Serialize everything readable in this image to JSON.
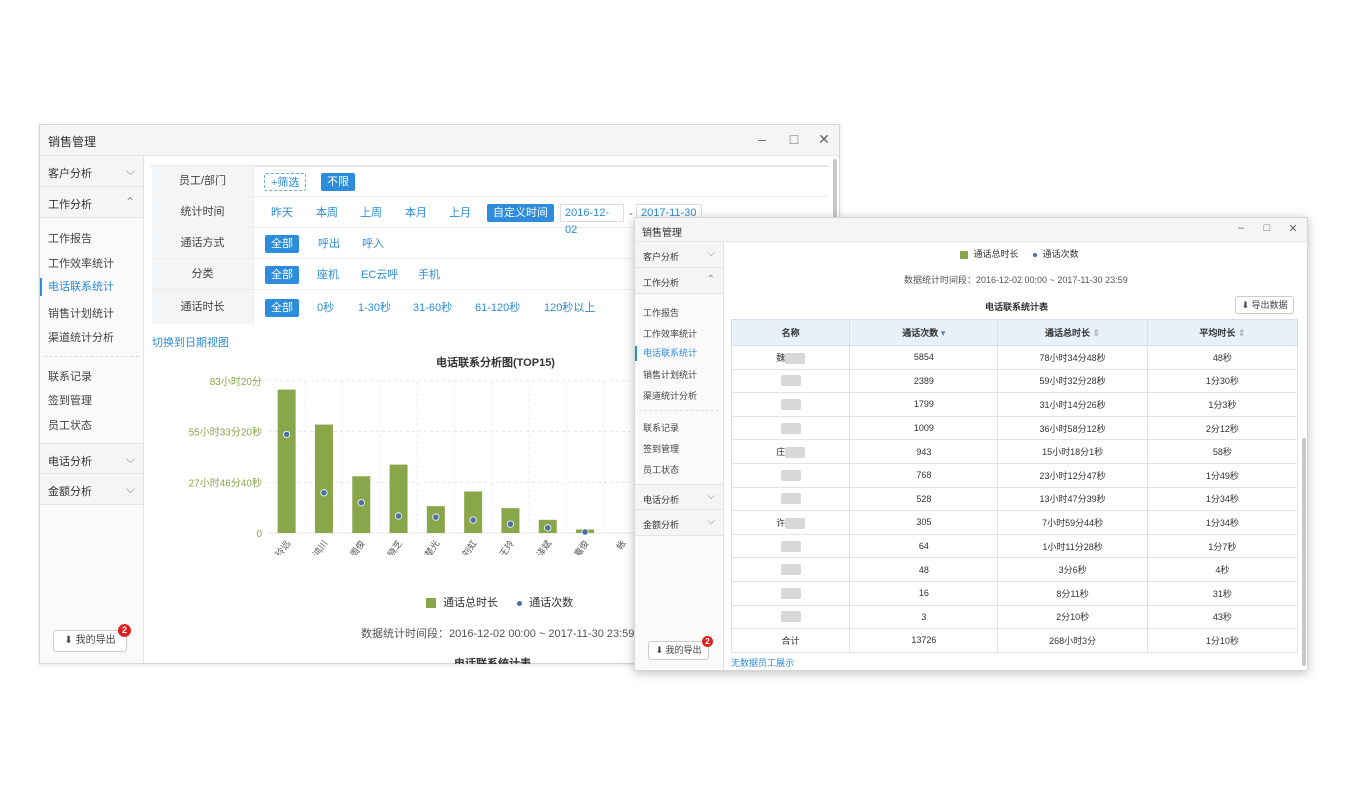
{
  "win1": {
    "title": "销售管理",
    "sidebar": {
      "group_customer": "客户分析",
      "group_work": "工作分析",
      "items": [
        "工作报告",
        "工作效率统计",
        "电话联系统计",
        "销售计划统计",
        "渠道统计分析"
      ],
      "items2": [
        "联系记录",
        "签到管理",
        "员工状态"
      ],
      "group_phone": "电话分析",
      "group_amount": "金额分析",
      "export_label": "我的导出",
      "export_badge": "2"
    },
    "filters": {
      "staff_label": "员工/部门",
      "staff_filter": "+筛选",
      "staff_all": "不限",
      "time_label": "统计时间",
      "time_options": [
        "昨天",
        "本周",
        "上周",
        "本月",
        "上月"
      ],
      "time_custom": "自定义时间",
      "date_from": "2016-12-02",
      "date_sep": "-",
      "date_to": "2017-11-30",
      "call_label": "通话方式",
      "call_options": [
        "全部",
        "呼出",
        "呼入"
      ],
      "cat_label": "分类",
      "cat_options": [
        "全部",
        "座机",
        "EC云呼",
        "手机"
      ],
      "dur_label": "通话时长",
      "dur_options": [
        "全部",
        "0秒",
        "1-30秒",
        "31-60秒",
        "61-120秒",
        "120秒以上"
      ]
    },
    "switch_link": "切换到日期视图",
    "footer_period": "数据统计时间段：2016-12-02 00:00 ~ 2017-11-30 23:59",
    "table_title_cut": "电话联系统计表"
  },
  "chart_data": {
    "type": "bar",
    "title": "电话联系分析图(TOP15)",
    "categories": [
      "魏玲远",
      "林鸿川",
      "周俊",
      "尹晓芝",
      "庄楚光",
      "刘虹",
      "EC王玲",
      "许泽斌",
      "赖嘉俊",
      "帐"
    ],
    "y_tick_labels": [
      "83小时20分",
      "55小时33分20秒",
      "27小时46分40秒",
      "0"
    ],
    "ylim_seconds": [
      0,
      300000
    ],
    "series": [
      {
        "name": "通话总时长",
        "color": "#8aa64a",
        "values": [
          283000,
          214000,
          112000,
          135000,
          53000,
          82000,
          49000,
          26000,
          7000,
          0
        ]
      },
      {
        "name": "通话次数",
        "color": "#4a6fa5",
        "values": [
          5854,
          2389,
          1799,
          1009,
          943,
          768,
          528,
          305,
          64,
          0
        ]
      }
    ],
    "legend_position": "bottom"
  },
  "win2": {
    "title": "销售管理",
    "sidebar": {
      "group_customer": "客户分析",
      "group_work": "工作分析",
      "items": [
        "工作报告",
        "工作效率统计",
        "电话联系统计",
        "销售计划统计",
        "渠道统计分析"
      ],
      "items2": [
        "联系记录",
        "签到管理",
        "员工状态"
      ],
      "group_phone": "电话分析",
      "group_amount": "金额分析",
      "export_label": "我的导出",
      "export_badge": "2"
    },
    "legend": [
      "通话总时长",
      "通话次数"
    ],
    "period": "数据统计时间段：2016-12-02 00:00 ~ 2017-11-30 23:59",
    "table_title": "电话联系统计表",
    "export_data": "导出数据",
    "columns": [
      "名称",
      "通话次数",
      "通话总时长",
      "平均时长"
    ],
    "rows": [
      {
        "name": "魏",
        "count": "5854",
        "total": "78小时34分48秒",
        "avg": "48秒"
      },
      {
        "name": "",
        "count": "2389",
        "total": "59小时32分28秒",
        "avg": "1分30秒"
      },
      {
        "name": "",
        "count": "1799",
        "total": "31小时14分26秒",
        "avg": "1分3秒"
      },
      {
        "name": "",
        "count": "1009",
        "total": "36小时58分12秒",
        "avg": "2分12秒"
      },
      {
        "name": "庄",
        "count": "943",
        "total": "15小时18分1秒",
        "avg": "58秒"
      },
      {
        "name": "",
        "count": "768",
        "total": "23小时12分47秒",
        "avg": "1分49秒"
      },
      {
        "name": "",
        "count": "528",
        "total": "13小时47分39秒",
        "avg": "1分34秒"
      },
      {
        "name": "许",
        "count": "305",
        "total": "7小时59分44秒",
        "avg": "1分34秒"
      },
      {
        "name": "",
        "count": "64",
        "total": "1小时11分28秒",
        "avg": "1分7秒"
      },
      {
        "name": "",
        "count": "48",
        "total": "3分6秒",
        "avg": "4秒"
      },
      {
        "name": "",
        "count": "16",
        "total": "8分11秒",
        "avg": "31秒"
      },
      {
        "name": "",
        "count": "3",
        "total": "2分10秒",
        "avg": "43秒"
      },
      {
        "name": "合计",
        "count": "13726",
        "total": "268小时3分",
        "avg": "1分10秒"
      }
    ],
    "no_data_link": "无数据员工展示"
  }
}
